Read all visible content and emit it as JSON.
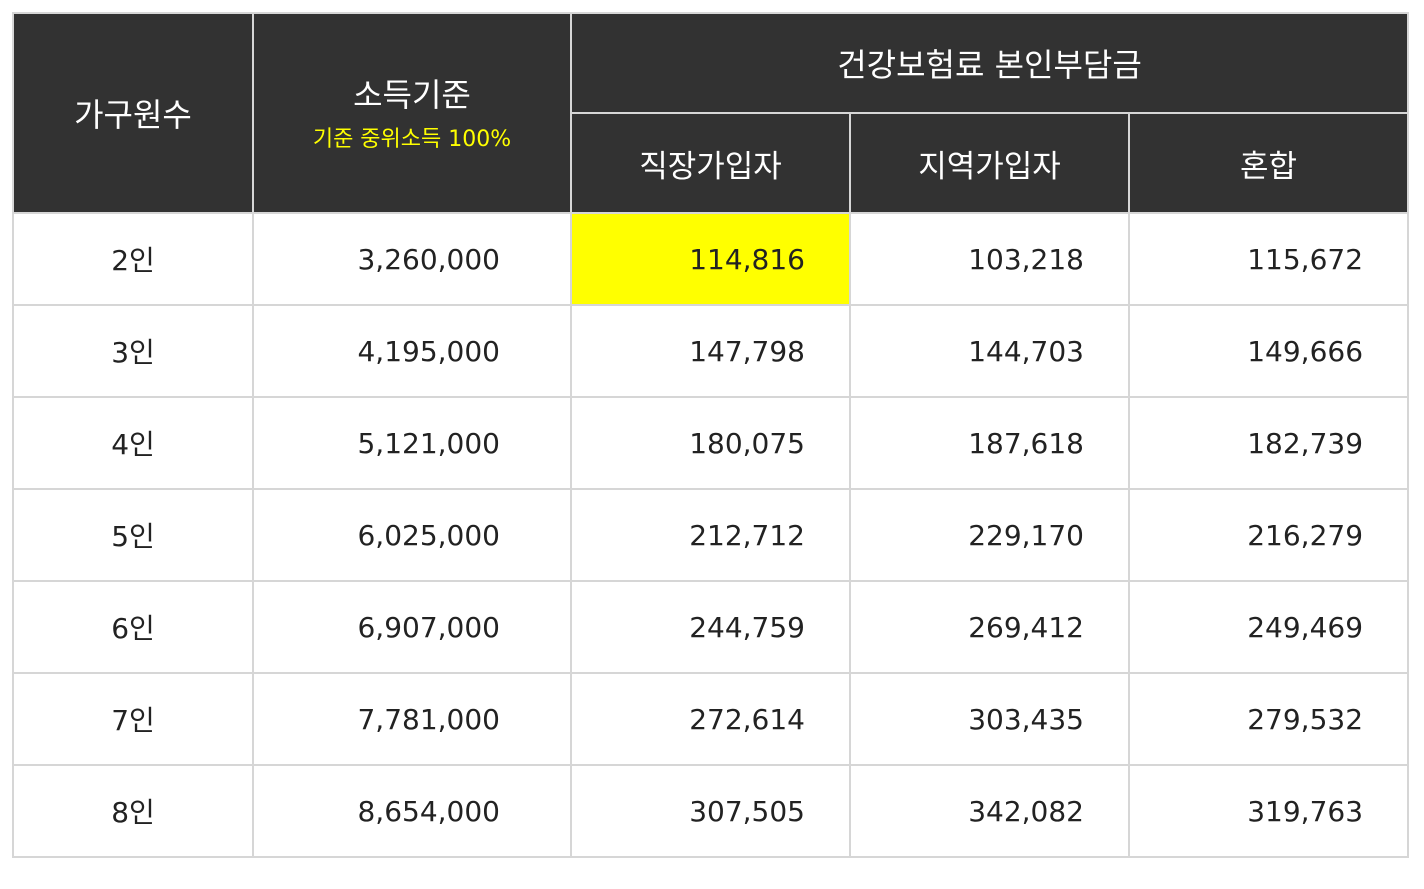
{
  "header": {
    "household": "가구원수",
    "income_title": "소득기준",
    "income_sub": "기준 중위소득 100%",
    "premium_group": "건강보험료 본인부담금",
    "employee": "직장가입자",
    "regional": "지역가입자",
    "mixed": "혼합"
  },
  "highlight_color": "#ffff00",
  "header_bg": "#323232",
  "rows": [
    {
      "household": "2인",
      "income": "3,260,000",
      "employee": "114,816",
      "regional": "103,218",
      "mixed": "115,672"
    },
    {
      "household": "3인",
      "income": "4,195,000",
      "employee": "147,798",
      "regional": "144,703",
      "mixed": "149,666"
    },
    {
      "household": "4인",
      "income": "5,121,000",
      "employee": "180,075",
      "regional": "187,618",
      "mixed": "182,739"
    },
    {
      "household": "5인",
      "income": "6,025,000",
      "employee": "212,712",
      "regional": "229,170",
      "mixed": "216,279"
    },
    {
      "household": "6인",
      "income": "6,907,000",
      "employee": "244,759",
      "regional": "269,412",
      "mixed": "249,469"
    },
    {
      "household": "7인",
      "income": "7,781,000",
      "employee": "272,614",
      "regional": "303,435",
      "mixed": "279,532"
    },
    {
      "household": "8인",
      "income": "8,654,000",
      "employee": "307,505",
      "regional": "342,082",
      "mixed": "319,763"
    }
  ]
}
